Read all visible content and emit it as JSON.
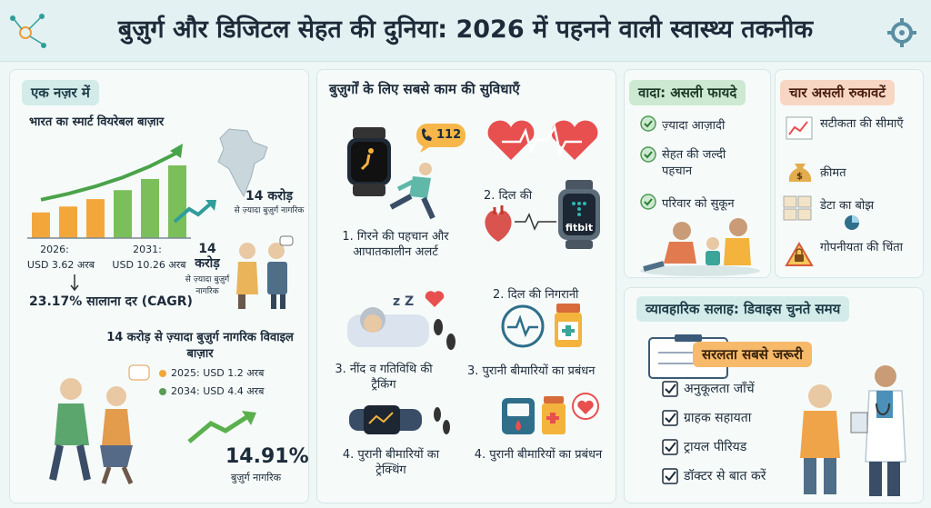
{
  "page": {
    "title": "बुज़ुर्ग और डिजिटल सेहत की दुनिया: 2026 में पहनने वाली स्वास्थ्य तकनीक"
  },
  "overview": {
    "heading": "एक नज़र में",
    "market_title": "भारत का स्मार्ट वियरेबल बाज़ार",
    "label_2026_year": "2026:",
    "label_2026_value": "USD 3.62 अरब",
    "label_2031_year": "2031:",
    "label_2031_value": "USD 10.26 अरब",
    "cagr": "23.17% सालाना दर (CAGR)",
    "map_big": "14 करोड़",
    "map_sub": "से ज़्यादा बुज़ुर्ग नागरिक",
    "left_big": "14 करोड़",
    "left_sub": "से ज़्यादा बुज़ुर्ग नागरिक",
    "elderly_market_title": "14 करोड़ से ज़्यादा बुज़ुर्ग नागरिक विवाइल बाज़ार",
    "legend_2025": "2025: USD 1.2 अरब",
    "legend_2034": "2034: USD 4.4 अरब",
    "growth_pct": "14.91%",
    "growth_label": "बुज़ुर्ग नागरिक",
    "colors": {
      "bar": "#f3a73b",
      "bar_green": "#7bbf5a",
      "arrow": "#5bb04e",
      "legend_2025": "#f3a73b",
      "legend_2034": "#5a9d55"
    }
  },
  "features": {
    "heading": "बुज़ुर्गों के लिए सबसे काम की सुविधाएँ",
    "call_number": "112",
    "item1": "1. गिरने की पहचान और आपातकालीन अलर्ट",
    "item2_top": "2. दिल की",
    "watch_brand": "fitbit",
    "item2b": "2. दिल की निगरानी",
    "item3": "3. नींद व गतिविथि की ट्रैकिंग",
    "item3b": "3. पुरानी बीमारियों का प्रबंधन",
    "item4": "4. पुरानी बीमारियों का ट्रेक्थिंग",
    "item4b": "4. पुरानी बीमारियों का प्रबंधन"
  },
  "benefits": {
    "heading": "वादा: असली फायदे",
    "items": [
      "ज़्यादा आज़ादी",
      "सेहत की जल्दी पहचान",
      "परिवार को सुकून"
    ]
  },
  "barriers": {
    "heading": "चार असली रुकावटें",
    "items": [
      "सटीकता की सीमाएँ",
      "क़ीमत",
      "डेटा का बोझ",
      "गोपनीयता की चिंता"
    ]
  },
  "advice": {
    "heading": "व्यावहारिक सलाह: डिवाइस चुनते समय",
    "highlight": "सरलता सबसे जरूरी",
    "items": [
      "अनुकूलता जाँचें",
      "ग्राहक सहायता",
      "ट्रायल पीरियड",
      "डॉक्टर से बात करें"
    ]
  },
  "chart_data": {
    "type": "bar",
    "title": "भारत का स्मार्ट वियरेबल बाज़ार",
    "categories": [
      "2026",
      "",
      "",
      "",
      "",
      "2031"
    ],
    "values": [
      3.62,
      4.46,
      5.5,
      6.77,
      8.34,
      10.26
    ],
    "ylabel": "",
    "xlabel": ""
  }
}
